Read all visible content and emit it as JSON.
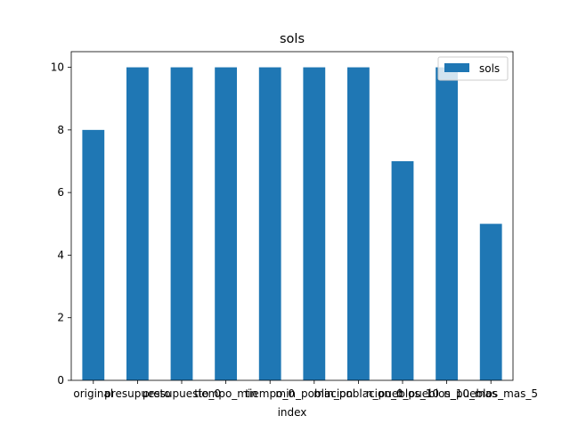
{
  "chart_data": {
    "type": "bar",
    "title": "sols",
    "xlabel": "index",
    "ylabel": "",
    "categories": [
      "original",
      "presupuesto",
      "presupuesto_0",
      "tiempo_min",
      "tiempo_0",
      "min_poblacion",
      "min_poblacion_0",
      "n_pueblos_10",
      "n_pueblos_10_mas",
      "n_pueblos_mas_5"
    ],
    "series": [
      {
        "name": "sols",
        "values": [
          8,
          10,
          10,
          10,
          10,
          10,
          10,
          7,
          10,
          5
        ],
        "color": "#1f77b4"
      }
    ],
    "yticks": [
      0,
      2,
      4,
      6,
      8,
      10
    ],
    "ylim": [
      0,
      10.5
    ],
    "grid": false,
    "legend": "top-right"
  }
}
